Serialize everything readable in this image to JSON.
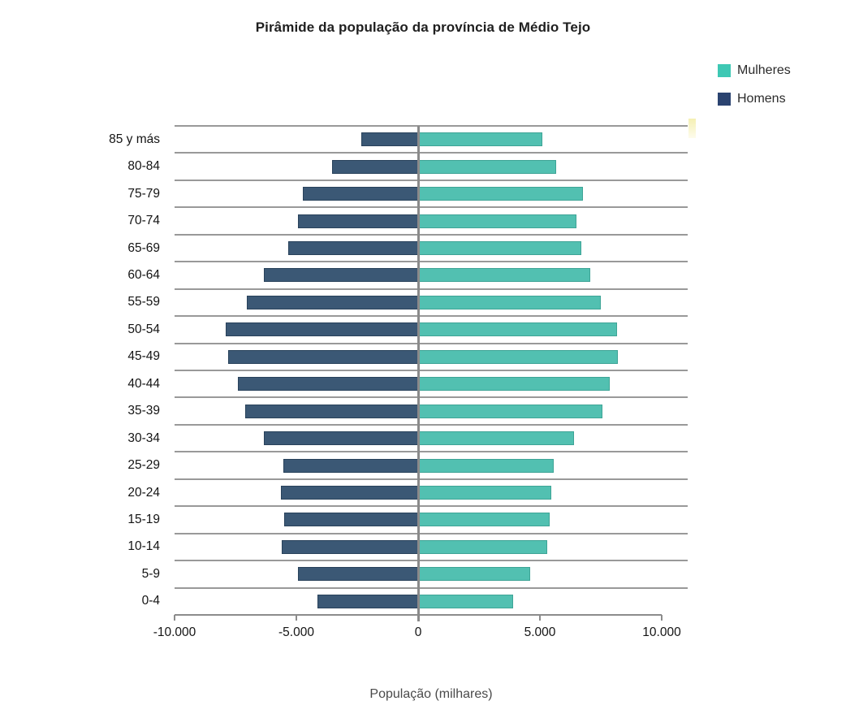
{
  "title": "Pirâmide da população da província de Médio Tejo",
  "legend": {
    "items": [
      {
        "id": "mulheres",
        "label": "Mulheres",
        "color": "#3EC8B4"
      },
      {
        "id": "homens",
        "label": "Homens",
        "color": "#2B4370"
      }
    ]
  },
  "x_axis_title": "População (milhares)",
  "chart_data": {
    "type": "bar",
    "subtype": "population-pyramid-diverging-horizontal",
    "title": "Pirâmide da população da província de Médio Tejo",
    "xlabel": "População (milhares)",
    "ylabel": "",
    "xlim": [
      -10000,
      10000
    ],
    "grid": "horizontal",
    "legend_position": "top-right",
    "xticks": [
      {
        "value": -10000,
        "label": "-10.000"
      },
      {
        "value": -5000,
        "label": "-5.000"
      },
      {
        "value": 0,
        "label": "0"
      },
      {
        "value": 5000,
        "label": "5.000"
      },
      {
        "value": 10000,
        "label": "10.000"
      }
    ],
    "categories": [
      "85 y más",
      "80-84",
      "75-79",
      "70-74",
      "65-69",
      "60-64",
      "55-59",
      "50-54",
      "45-49",
      "40-44",
      "35-39",
      "30-34",
      "25-29",
      "20-24",
      "15-19",
      "10-14",
      "5-9",
      "0-4"
    ],
    "series": [
      {
        "name": "Mulheres",
        "color": "#52C0B1",
        "legend_color": "#3EC8B4",
        "values": [
          5100,
          5650,
          6750,
          6500,
          6700,
          7050,
          7500,
          8150,
          8200,
          7850,
          7550,
          6400,
          5550,
          5450,
          5400,
          5300,
          4600,
          3900
        ]
      },
      {
        "name": "Homens",
        "color": "#3B5875",
        "legend_color": "#2B4370",
        "values": [
          -2350,
          -3550,
          -4750,
          -4950,
          -5350,
          -6350,
          -7050,
          -7900,
          -7800,
          -7400,
          -7100,
          -6350,
          -5550,
          -5650,
          -5500,
          -5600,
          -4950,
          -4150
        ]
      }
    ]
  },
  "colors": {
    "gridline": "#999999",
    "axis": "#8c8c8c",
    "title_text": "#1f1f1f",
    "label_text": "#141414",
    "axis_title_text": "#4a4a4a",
    "yellow_marker": "#F3EDA6"
  }
}
